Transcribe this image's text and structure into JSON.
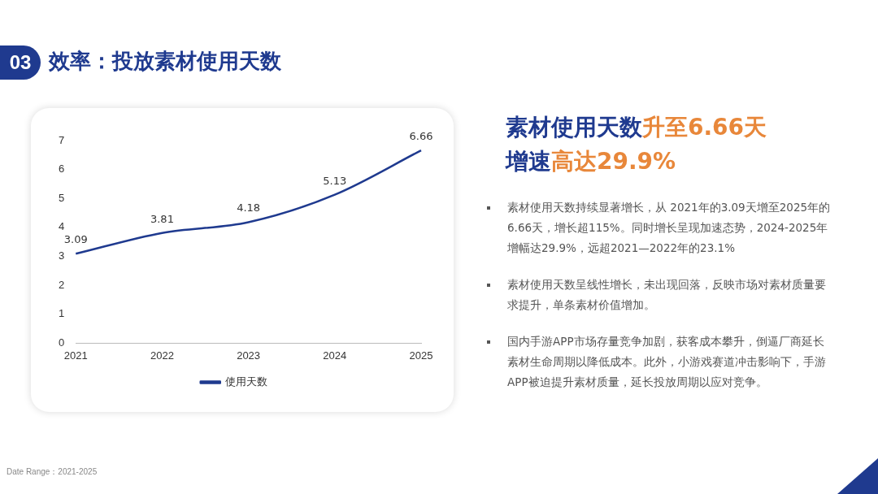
{
  "chart_data": {
    "type": "line",
    "title": "效率：投放素材使用天数",
    "categories": [
      "2021",
      "2022",
      "2023",
      "2024",
      "2025"
    ],
    "series": [
      {
        "name": "使用天数",
        "color": "#1f3a8f",
        "values": [
          3.09,
          3.81,
          4.18,
          5.13,
          6.66
        ]
      }
    ],
    "ylim": [
      0,
      7
    ],
    "yticks": [
      0,
      1,
      2,
      3,
      4,
      5,
      6,
      7
    ],
    "grid": false,
    "legend": "bottom",
    "marker": "none",
    "line_style": "solid",
    "data_labels": true,
    "annotations": [
      "03",
      "素材使用天数",
      "升至6.66天",
      "增速",
      "高达29.9%",
      "素材使用天数持续显著增长，从 2021年的3.09天增至2025年的6.66天，增长超115%。同时增长呈现加速态势，2024-2025年增幅达29.9%，远超2021—2022年的23.1%",
      "素材使用天数呈线性增长，未出现回落，反映市场对素材质量要求提升，单条素材价值增加。",
      "国内手游APP市场存量竞争加剧，获客成本攀升，倒逼厂商延长素材生命周期以降低成本。此外，小游戏赛道冲击影响下，手游APP被迫提升素材质量，延长投放周期以应对竞争。",
      "Date Range：2021-2025"
    ]
  }
}
